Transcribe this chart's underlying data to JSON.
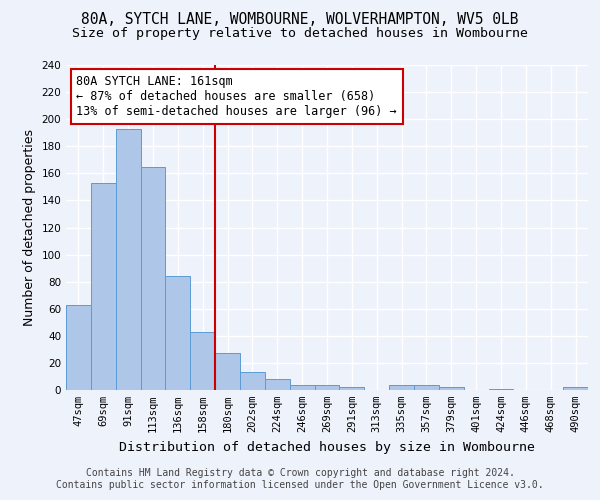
{
  "title_line1": "80A, SYTCH LANE, WOMBOURNE, WOLVERHAMPTON, WV5 0LB",
  "title_line2": "Size of property relative to detached houses in Wombourne",
  "xlabel": "Distribution of detached houses by size in Wombourne",
  "ylabel": "Number of detached properties",
  "categories": [
    "47sqm",
    "69sqm",
    "91sqm",
    "113sqm",
    "136sqm",
    "158sqm",
    "180sqm",
    "202sqm",
    "224sqm",
    "246sqm",
    "269sqm",
    "291sqm",
    "313sqm",
    "335sqm",
    "357sqm",
    "379sqm",
    "401sqm",
    "424sqm",
    "446sqm",
    "468sqm",
    "490sqm"
  ],
  "values": [
    63,
    153,
    193,
    165,
    84,
    43,
    27,
    13,
    8,
    4,
    4,
    2,
    0,
    4,
    4,
    2,
    0,
    1,
    0,
    0,
    2
  ],
  "bar_color": "#aec6e8",
  "bar_edge_color": "#5b9bd5",
  "annotation_line1": "80A SYTCH LANE: 161sqm",
  "annotation_line2": "← 87% of detached houses are smaller (658)",
  "annotation_line3": "13% of semi-detached houses are larger (96) →",
  "vline_color": "#cc0000",
  "annotation_box_color": "#cc0000",
  "ylim": [
    0,
    240
  ],
  "yticks": [
    0,
    20,
    40,
    60,
    80,
    100,
    120,
    140,
    160,
    180,
    200,
    220,
    240
  ],
  "footer_line1": "Contains HM Land Registry data © Crown copyright and database right 2024.",
  "footer_line2": "Contains public sector information licensed under the Open Government Licence v3.0.",
  "bg_color": "#eef2fb",
  "grid_color": "#ffffff",
  "title_fontsize": 10.5,
  "subtitle_fontsize": 9.5,
  "ylabel_fontsize": 9,
  "xlabel_fontsize": 9.5,
  "tick_fontsize": 7.5,
  "annot_fontsize": 8.5,
  "footer_fontsize": 7
}
